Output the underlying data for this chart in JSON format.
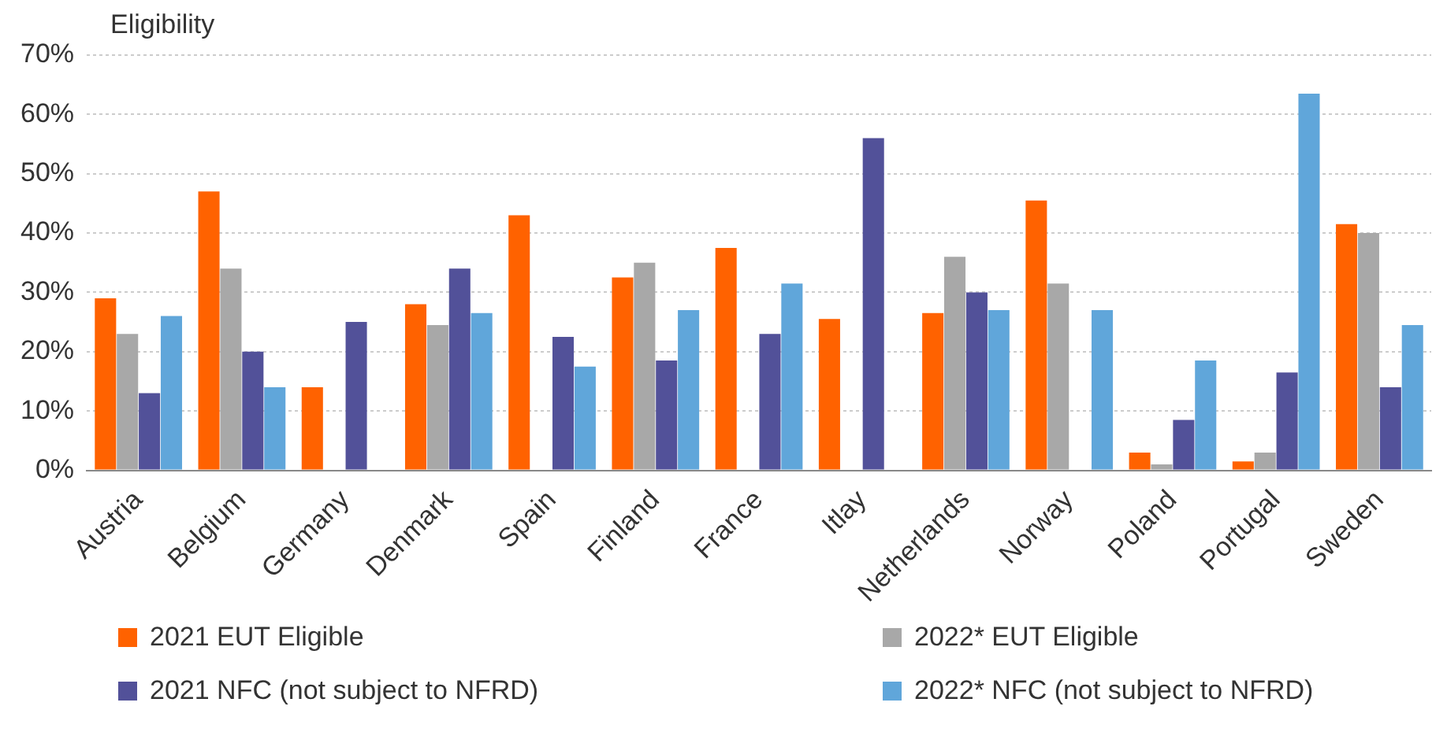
{
  "chart_data": {
    "type": "bar",
    "ylabel": "Eligibility",
    "categories": [
      "Austria",
      "Belgium",
      "Germany",
      "Denmark",
      "Spain",
      "Finland",
      "France",
      "Itlay",
      "Netherlands",
      "Norway",
      "Poland",
      "Portugal",
      "Sweden"
    ],
    "series": [
      {
        "name": "2021 EUT Eligible",
        "color": "#ff6200",
        "values": [
          29,
          47,
          14,
          28,
          43,
          32.5,
          37.5,
          25.5,
          26.5,
          45.5,
          3,
          1.5,
          41.5
        ]
      },
      {
        "name": "2022* EUT Eligible",
        "color": "#a8a8a8",
        "values": [
          23,
          34,
          null,
          24.5,
          null,
          35,
          null,
          null,
          36,
          31.5,
          1,
          3,
          40
        ]
      },
      {
        "name": "2021 NFC (not subject to NFRD)",
        "color": "#525199",
        "values": [
          13,
          20,
          25,
          34,
          22.5,
          18.5,
          23,
          56,
          30,
          null,
          8.5,
          16.5,
          14
        ]
      },
      {
        "name": "2022* NFC (not subject to NFRD)",
        "color": "#60a6da",
        "values": [
          26,
          14,
          null,
          26.5,
          17.5,
          27,
          31.5,
          null,
          27,
          27,
          18.5,
          63.5,
          24.5
        ]
      }
    ],
    "ylim": [
      0,
      70
    ],
    "yticks": [
      {
        "value": 0,
        "label": "0%"
      },
      {
        "value": 10,
        "label": "10%"
      },
      {
        "value": 20,
        "label": "20%"
      },
      {
        "value": 30,
        "label": "30%"
      },
      {
        "value": 40,
        "label": "40%"
      },
      {
        "value": 50,
        "label": "50%"
      },
      {
        "value": 60,
        "label": "60%"
      },
      {
        "value": 70,
        "label": "70%"
      }
    ],
    "grid": "y",
    "legend": "bottom"
  }
}
